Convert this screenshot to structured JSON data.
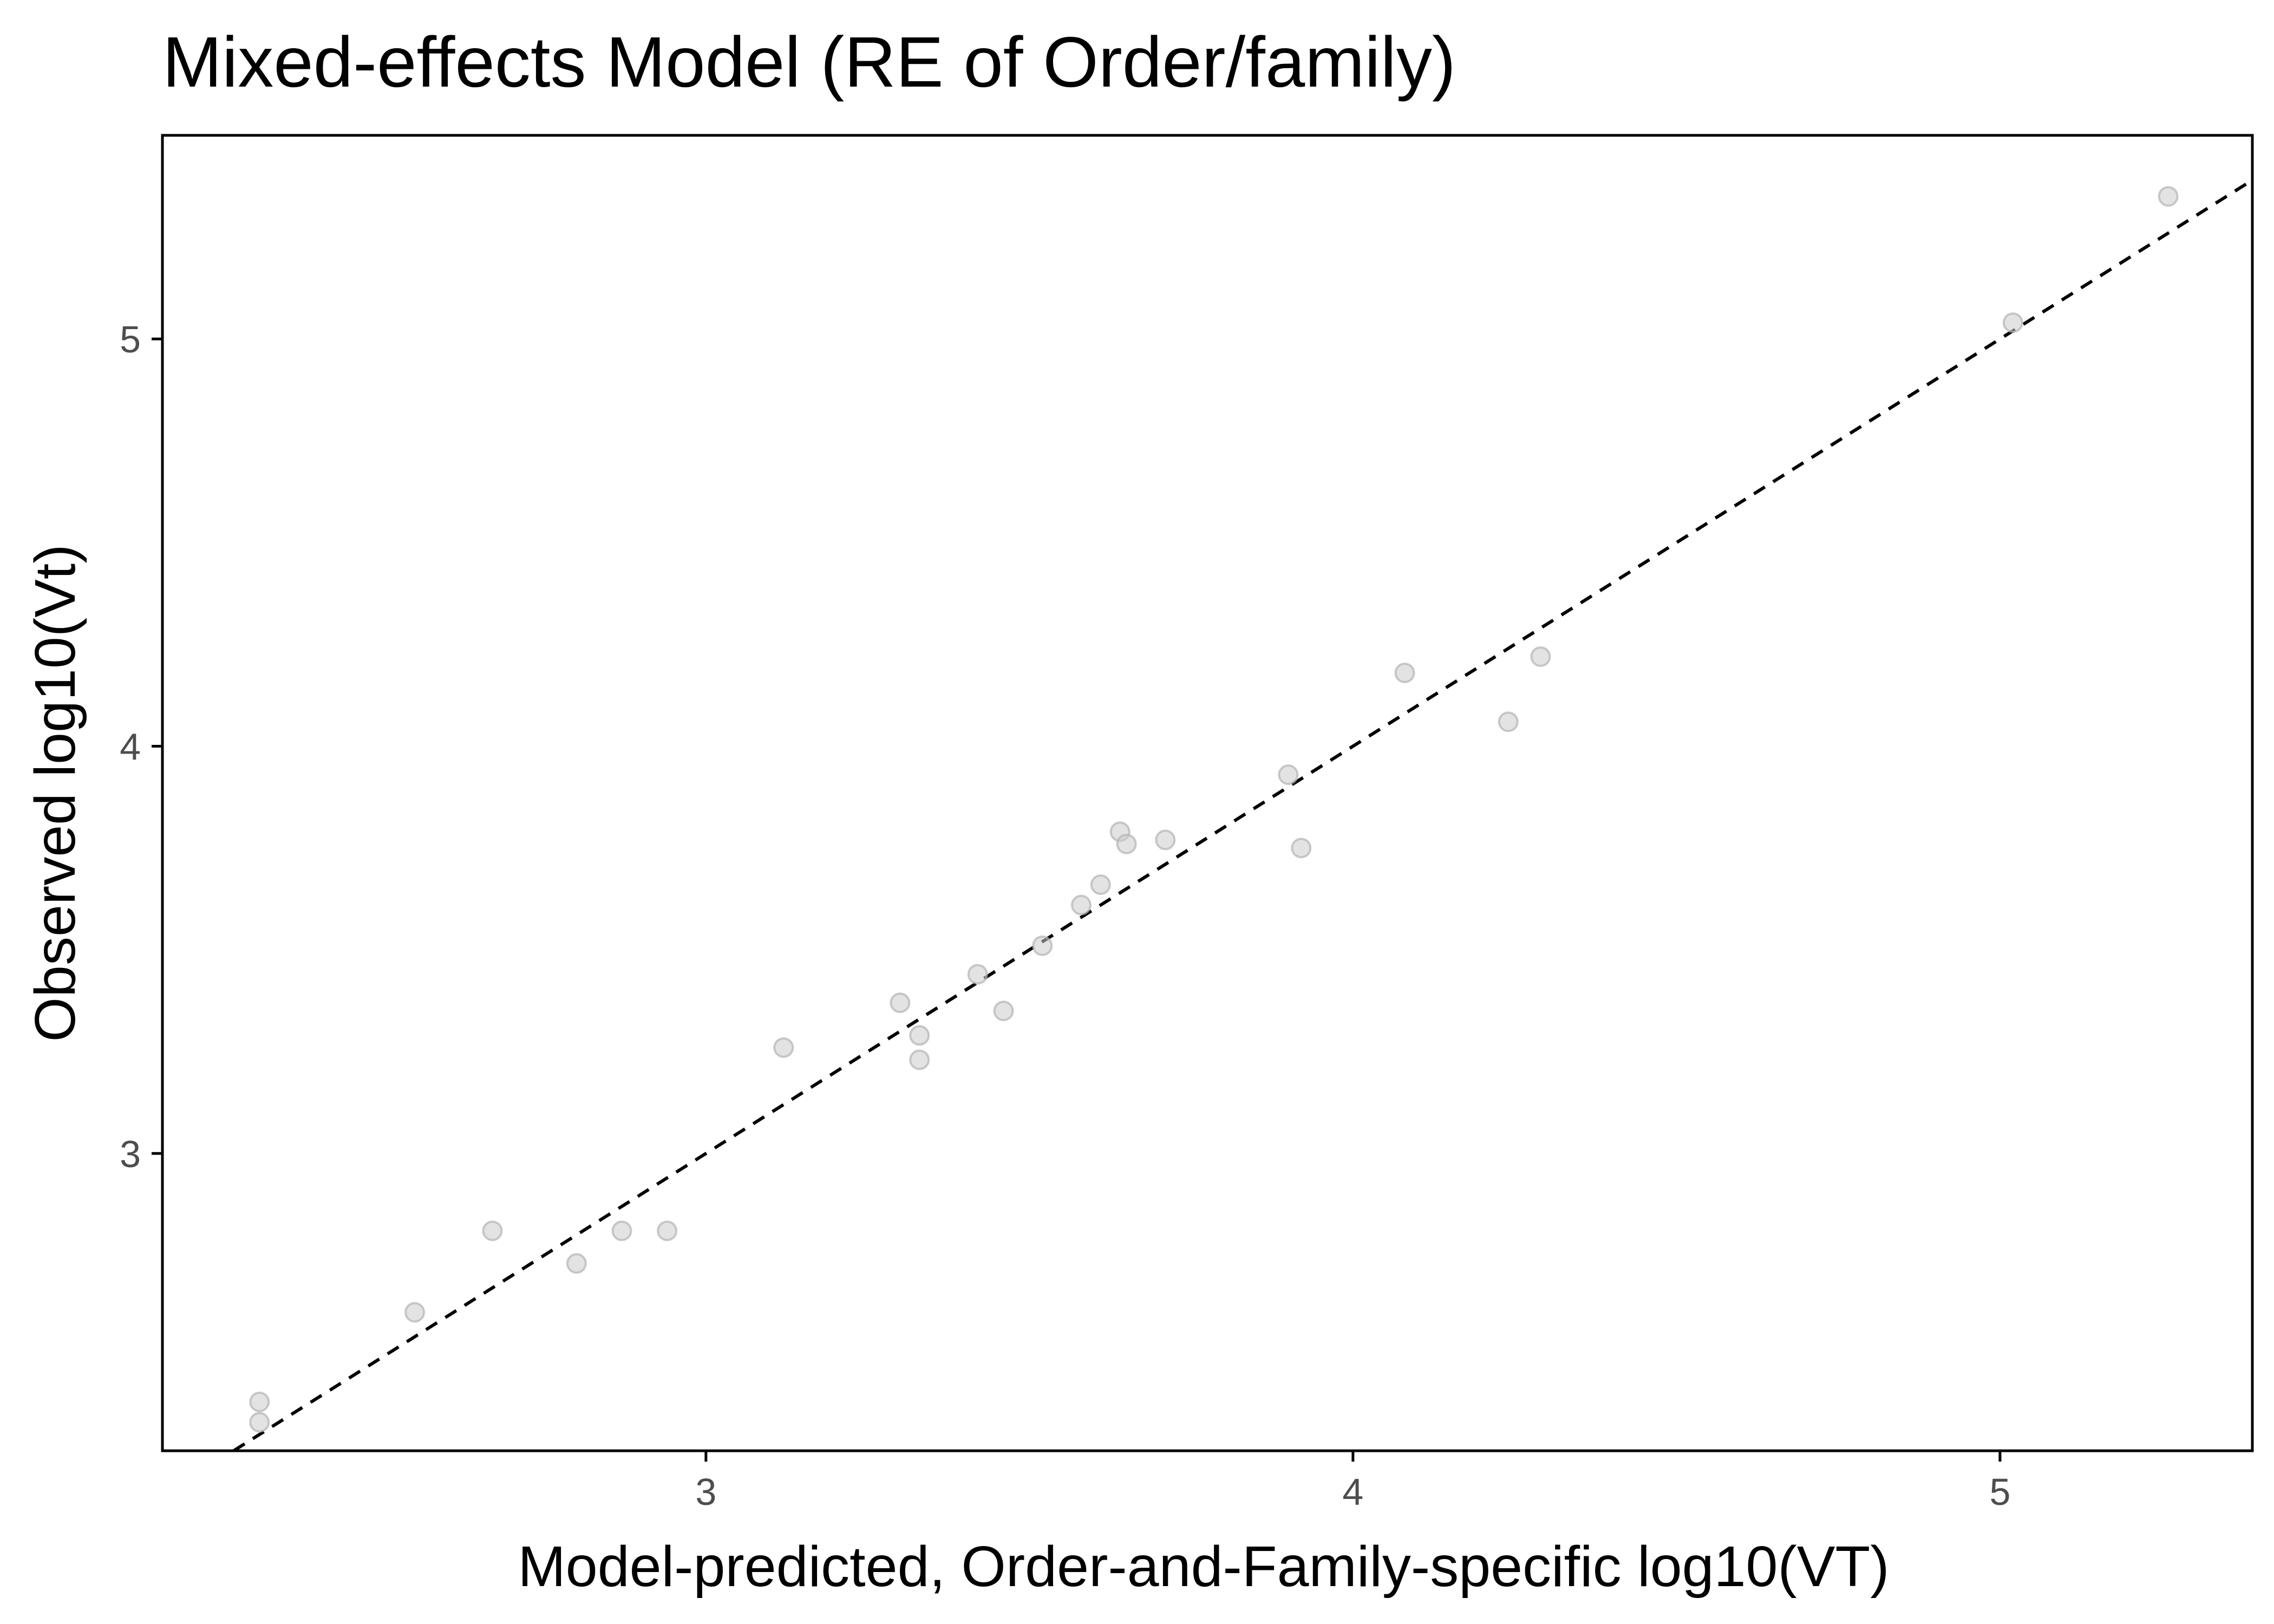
{
  "chart_data": {
    "type": "scatter",
    "title": "Mixed-effects Model (RE of Order/family)",
    "xlabel": "Model-predicted, Order-and-Family-specific log10(VT)",
    "ylabel": "Observed log10(Vt)",
    "xlim": [
      2.16,
      5.39
    ],
    "ylim": [
      2.27,
      5.5
    ],
    "xticks": [
      3,
      4,
      5
    ],
    "yticks": [
      3,
      4,
      5
    ],
    "grid": false,
    "reference_line": {
      "style": "dashed",
      "slope": 1,
      "intercept": 0
    },
    "point_color": "#cccccc",
    "points": [
      {
        "x": 2.31,
        "y": 2.34
      },
      {
        "x": 2.31,
        "y": 2.39
      },
      {
        "x": 2.55,
        "y": 2.61
      },
      {
        "x": 2.67,
        "y": 2.81
      },
      {
        "x": 2.8,
        "y": 2.73
      },
      {
        "x": 2.87,
        "y": 2.81
      },
      {
        "x": 2.94,
        "y": 2.81
      },
      {
        "x": 3.12,
        "y": 3.26
      },
      {
        "x": 3.3,
        "y": 3.37
      },
      {
        "x": 3.33,
        "y": 3.29
      },
      {
        "x": 3.33,
        "y": 3.23
      },
      {
        "x": 3.42,
        "y": 3.44
      },
      {
        "x": 3.46,
        "y": 3.35
      },
      {
        "x": 3.52,
        "y": 3.51
      },
      {
        "x": 3.58,
        "y": 3.61
      },
      {
        "x": 3.61,
        "y": 3.66
      },
      {
        "x": 3.64,
        "y": 3.79
      },
      {
        "x": 3.65,
        "y": 3.76
      },
      {
        "x": 3.71,
        "y": 3.77
      },
      {
        "x": 3.9,
        "y": 3.93
      },
      {
        "x": 3.92,
        "y": 3.75
      },
      {
        "x": 4.08,
        "y": 4.18
      },
      {
        "x": 4.24,
        "y": 4.06
      },
      {
        "x": 4.29,
        "y": 4.22
      },
      {
        "x": 5.02,
        "y": 5.04
      },
      {
        "x": 5.26,
        "y": 5.35
      }
    ]
  }
}
